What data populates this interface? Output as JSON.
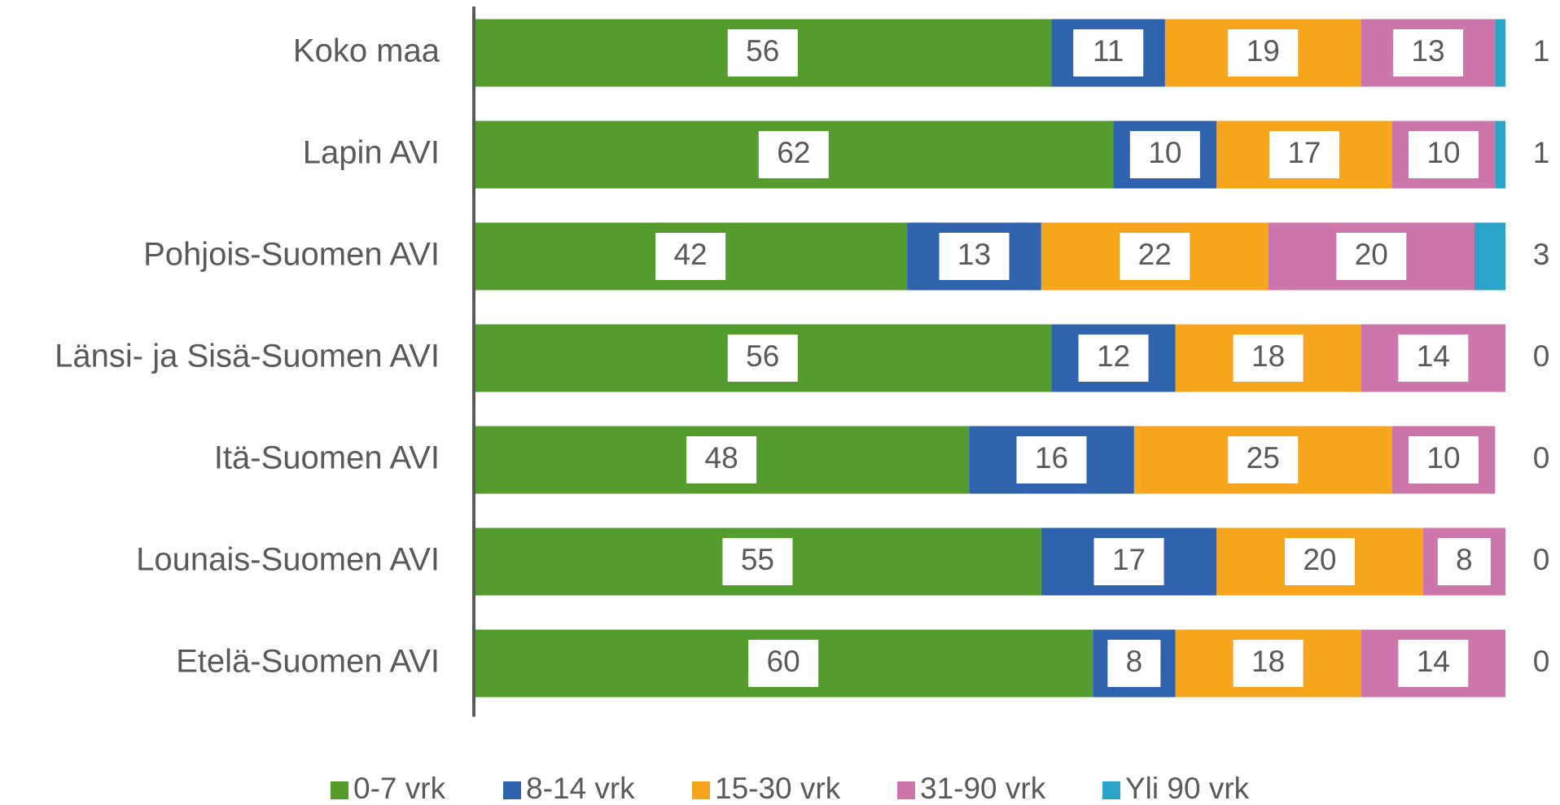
{
  "chart_data": {
    "type": "stacked-bar-horizontal",
    "categories": [
      "Koko maa",
      "Lapin AVI",
      "Pohjois-Suomen AVI",
      "Länsi- ja Sisä-Suomen AVI",
      "Itä-Suomen AVI",
      "Lounais-Suomen AVI",
      "Etelä-Suomen AVI"
    ],
    "series": [
      {
        "name": "0-7 vrk",
        "color": "#559c2f",
        "values": [
          56,
          62,
          42,
          56,
          48,
          55,
          60
        ]
      },
      {
        "name": "8-14 vrk",
        "color": "#2f63ae",
        "values": [
          11,
          10,
          13,
          12,
          16,
          17,
          8
        ]
      },
      {
        "name": "15-30 vrk",
        "color": "#f7a51d",
        "values": [
          19,
          17,
          22,
          18,
          25,
          20,
          18
        ]
      },
      {
        "name": "31-90 vrk",
        "color": "#cc76ab",
        "values": [
          13,
          10,
          20,
          14,
          10,
          8,
          14
        ]
      },
      {
        "name": "Yli 90 vrk",
        "color": "#2aa4c8",
        "values": [
          1,
          1,
          3,
          0,
          0,
          0,
          0
        ]
      }
    ],
    "xlim": [
      0,
      100
    ],
    "legend": "bottom"
  }
}
